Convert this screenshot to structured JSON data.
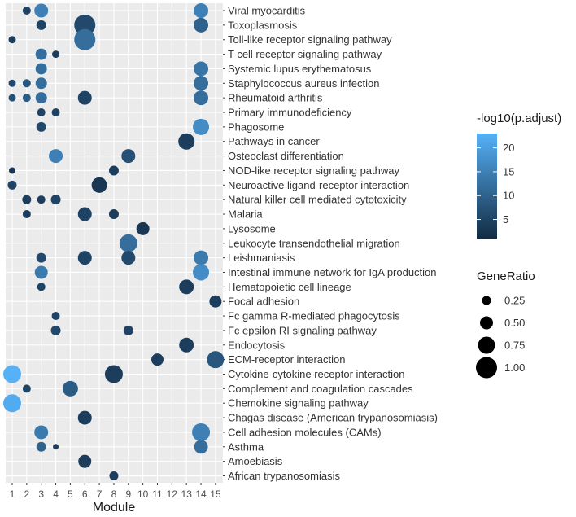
{
  "chart_data": {
    "type": "dot",
    "xlabel": "Module",
    "ylabel": "",
    "modules": [
      "1",
      "2",
      "3",
      "4",
      "5",
      "6",
      "7",
      "8",
      "9",
      "10",
      "11",
      "12",
      "13",
      "14",
      "15"
    ],
    "pathways": [
      "Viral myocarditis",
      "Toxoplasmosis",
      "Toll-like receptor signaling pathway",
      "T cell receptor signaling pathway",
      "Systemic lupus erythematosus",
      "Staphylococcus aureus infection",
      "Rheumatoid arthritis",
      "Primary immunodeficiency",
      "Phagosome",
      "Pathways in cancer",
      "Osteoclast differentiation",
      "NOD-like receptor signaling pathway",
      "Neuroactive ligand-receptor interaction",
      "Natural killer cell mediated cytotoxicity",
      "Malaria",
      "Lysosome",
      "Leukocyte transendothelial migration",
      "Leishmaniasis",
      "Intestinal immune network for IgA production",
      "Hematopoietic cell lineage",
      "Focal adhesion",
      "Fc gamma R-mediated phagocytosis",
      "Fc epsilon RI signaling pathway",
      "Endocytosis",
      "ECM-receptor interaction",
      "Cytokine-cytokine receptor interaction",
      "Complement and coagulation cascades",
      "Chemokine signaling pathway",
      "Chagas disease (American trypanosomiasis)",
      "Cell adhesion molecules (CAMs)",
      "Asthma",
      "Amoebiasis",
      "African trypanosomiasis"
    ],
    "color_legend": {
      "title": "-log10(p.adjust)",
      "ticks": [
        5,
        10,
        15,
        20
      ],
      "range": [
        1,
        23
      ],
      "low_color": "#132B43",
      "high_color": "#56B1F7"
    },
    "size_legend": {
      "title": "GeneRatio",
      "values": [
        0.25,
        0.5,
        0.75,
        1.0
      ],
      "labels": [
        "0.25",
        "0.50",
        "0.75",
        "1.00"
      ]
    },
    "points": [
      {
        "pathway": "Viral myocarditis",
        "module": "2",
        "ratio": 0.2,
        "padj": 5
      },
      {
        "pathway": "Viral myocarditis",
        "module": "3",
        "ratio": 0.55,
        "padj": 15
      },
      {
        "pathway": "Viral myocarditis",
        "module": "14",
        "ratio": 0.6,
        "padj": 15
      },
      {
        "pathway": "Toxoplasmosis",
        "module": "3",
        "ratio": 0.3,
        "padj": 5
      },
      {
        "pathway": "Toxoplasmosis",
        "module": "6",
        "ratio": 1.0,
        "padj": 6
      },
      {
        "pathway": "Toxoplasmosis",
        "module": "14",
        "ratio": 0.6,
        "padj": 10
      },
      {
        "pathway": "Toll-like receptor signaling pathway",
        "module": "1",
        "ratio": 0.15,
        "padj": 4
      },
      {
        "pathway": "Toll-like receptor signaling pathway",
        "module": "6",
        "ratio": 1.0,
        "padj": 12
      },
      {
        "pathway": "T cell receptor signaling pathway",
        "module": "3",
        "ratio": 0.4,
        "padj": 12
      },
      {
        "pathway": "T cell receptor signaling pathway",
        "module": "4",
        "ratio": 0.15,
        "padj": 4
      },
      {
        "pathway": "Systemic lupus erythematosus",
        "module": "3",
        "ratio": 0.4,
        "padj": 12
      },
      {
        "pathway": "Systemic lupus erythematosus",
        "module": "14",
        "ratio": 0.6,
        "padj": 13
      },
      {
        "pathway": "Staphylococcus aureus infection",
        "module": "1",
        "ratio": 0.15,
        "padj": 6
      },
      {
        "pathway": "Staphylococcus aureus infection",
        "module": "2",
        "ratio": 0.2,
        "padj": 8
      },
      {
        "pathway": "Staphylococcus aureus infection",
        "module": "3",
        "ratio": 0.4,
        "padj": 12
      },
      {
        "pathway": "Staphylococcus aureus infection",
        "module": "14",
        "ratio": 0.6,
        "padj": 12
      },
      {
        "pathway": "Rheumatoid arthritis",
        "module": "1",
        "ratio": 0.15,
        "padj": 7
      },
      {
        "pathway": "Rheumatoid arthritis",
        "module": "2",
        "ratio": 0.2,
        "padj": 9
      },
      {
        "pathway": "Rheumatoid arthritis",
        "module": "3",
        "ratio": 0.4,
        "padj": 12
      },
      {
        "pathway": "Rheumatoid arthritis",
        "module": "6",
        "ratio": 0.55,
        "padj": 5
      },
      {
        "pathway": "Rheumatoid arthritis",
        "module": "14",
        "ratio": 0.6,
        "padj": 12
      },
      {
        "pathway": "Primary immunodeficiency",
        "module": "3",
        "ratio": 0.2,
        "padj": 5
      },
      {
        "pathway": "Primary immunodeficiency",
        "module": "4",
        "ratio": 0.2,
        "padj": 5
      },
      {
        "pathway": "Phagosome",
        "module": "3",
        "ratio": 0.3,
        "padj": 6
      },
      {
        "pathway": "Phagosome",
        "module": "14",
        "ratio": 0.7,
        "padj": 17
      },
      {
        "pathway": "Pathways in cancer",
        "module": "13",
        "ratio": 0.7,
        "padj": 4
      },
      {
        "pathway": "Osteoclast differentiation",
        "module": "4",
        "ratio": 0.55,
        "padj": 15
      },
      {
        "pathway": "Osteoclast differentiation",
        "module": "9",
        "ratio": 0.55,
        "padj": 7
      },
      {
        "pathway": "NOD-like receptor signaling pathway",
        "module": "1",
        "ratio": 0.1,
        "padj": 3
      },
      {
        "pathway": "NOD-like receptor signaling pathway",
        "module": "8",
        "ratio": 0.3,
        "padj": 4
      },
      {
        "pathway": "Neuroactive ligand-receptor interaction",
        "module": "1",
        "ratio": 0.25,
        "padj": 5
      },
      {
        "pathway": "Neuroactive ligand-receptor interaction",
        "module": "7",
        "ratio": 0.65,
        "padj": 3
      },
      {
        "pathway": "Natural killer cell mediated cytotoxicity",
        "module": "2",
        "ratio": 0.25,
        "padj": 4
      },
      {
        "pathway": "Natural killer cell mediated cytotoxicity",
        "module": "3",
        "ratio": 0.2,
        "padj": 4
      },
      {
        "pathway": "Natural killer cell mediated cytotoxicity",
        "module": "4",
        "ratio": 0.3,
        "padj": 5
      },
      {
        "pathway": "Malaria",
        "module": "2",
        "ratio": 0.2,
        "padj": 4
      },
      {
        "pathway": "Malaria",
        "module": "6",
        "ratio": 0.55,
        "padj": 5
      },
      {
        "pathway": "Malaria",
        "module": "8",
        "ratio": 0.3,
        "padj": 4
      },
      {
        "pathway": "Lysosome",
        "module": "10",
        "ratio": 0.5,
        "padj": 3
      },
      {
        "pathway": "Leukocyte transendothelial migration",
        "module": "9",
        "ratio": 0.8,
        "padj": 12
      },
      {
        "pathway": "Leishmaniasis",
        "module": "3",
        "ratio": 0.3,
        "padj": 6
      },
      {
        "pathway": "Leishmaniasis",
        "module": "6",
        "ratio": 0.55,
        "padj": 5
      },
      {
        "pathway": "Leishmaniasis",
        "module": "9",
        "ratio": 0.55,
        "padj": 6
      },
      {
        "pathway": "Leishmaniasis",
        "module": "14",
        "ratio": 0.6,
        "padj": 14
      },
      {
        "pathway": "Intestinal immune network for IgA production",
        "module": "3",
        "ratio": 0.5,
        "padj": 14
      },
      {
        "pathway": "Intestinal immune network for IgA production",
        "module": "14",
        "ratio": 0.7,
        "padj": 17
      },
      {
        "pathway": "Hematopoietic cell lineage",
        "module": "3",
        "ratio": 0.2,
        "padj": 5
      },
      {
        "pathway": "Hematopoietic cell lineage",
        "module": "13",
        "ratio": 0.6,
        "padj": 4
      },
      {
        "pathway": "Focal adhesion",
        "module": "15",
        "ratio": 0.45,
        "padj": 4
      },
      {
        "pathway": "Fc gamma R-mediated phagocytosis",
        "module": "4",
        "ratio": 0.2,
        "padj": 5
      },
      {
        "pathway": "Fc epsilon RI signaling pathway",
        "module": "4",
        "ratio": 0.3,
        "padj": 6
      },
      {
        "pathway": "Fc epsilon RI signaling pathway",
        "module": "9",
        "ratio": 0.3,
        "padj": 5
      },
      {
        "pathway": "Endocytosis",
        "module": "13",
        "ratio": 0.6,
        "padj": 4
      },
      {
        "pathway": "ECM-receptor interaction",
        "module": "11",
        "ratio": 0.45,
        "padj": 4
      },
      {
        "pathway": "ECM-receptor interaction",
        "module": "15",
        "ratio": 0.75,
        "padj": 8
      },
      {
        "pathway": "Cytokine-cytokine receptor interaction",
        "module": "1",
        "ratio": 0.8,
        "padj": 23
      },
      {
        "pathway": "Cytokine-cytokine receptor interaction",
        "module": "8",
        "ratio": 0.8,
        "padj": 4
      },
      {
        "pathway": "Complement and coagulation cascades",
        "module": "2",
        "ratio": 0.2,
        "padj": 5
      },
      {
        "pathway": "Complement and coagulation cascades",
        "module": "5",
        "ratio": 0.65,
        "padj": 9
      },
      {
        "pathway": "Chemokine signaling pathway",
        "module": "1",
        "ratio": 0.8,
        "padj": 22
      },
      {
        "pathway": "Chagas disease (American trypanosomiasis)",
        "module": "6",
        "ratio": 0.55,
        "padj": 4
      },
      {
        "pathway": "Cell adhesion molecules (CAMs)",
        "module": "3",
        "ratio": 0.55,
        "padj": 14
      },
      {
        "pathway": "Cell adhesion molecules (CAMs)",
        "module": "14",
        "ratio": 0.8,
        "padj": 15
      },
      {
        "pathway": "Asthma",
        "module": "3",
        "ratio": 0.3,
        "padj": 10
      },
      {
        "pathway": "Asthma",
        "module": "4",
        "ratio": 0.05,
        "padj": 4
      },
      {
        "pathway": "Asthma",
        "module": "14",
        "ratio": 0.55,
        "padj": 12
      },
      {
        "pathway": "Amoebiasis",
        "module": "6",
        "ratio": 0.5,
        "padj": 4
      },
      {
        "pathway": "African trypanosomiasis",
        "module": "8",
        "ratio": 0.25,
        "padj": 4
      }
    ]
  }
}
